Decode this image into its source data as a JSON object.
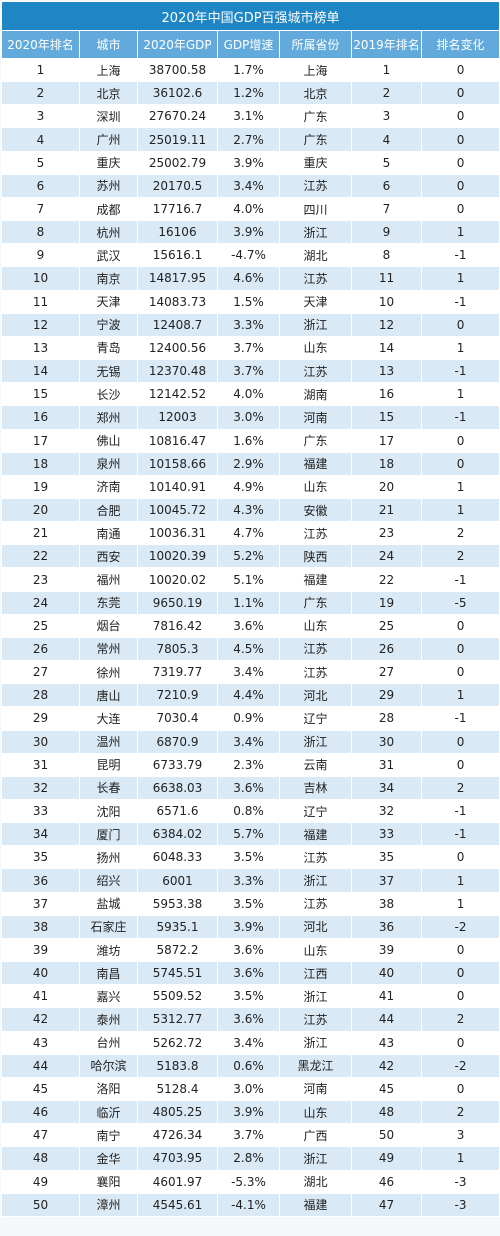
{
  "title": "2020年中国GDP百强城市榜单",
  "headers": [
    "2020年排名",
    "城市",
    "2020年GDP",
    "GDP增速",
    "所属省份",
    "2019年排名",
    "排名变化"
  ],
  "rows": [
    [
      "1",
      "上海",
      "38700.58",
      "1.7%",
      "上海",
      "1",
      "0"
    ],
    [
      "2",
      "北京",
      "36102.6",
      "1.2%",
      "北京",
      "2",
      "0"
    ],
    [
      "3",
      "深圳",
      "27670.24",
      "3.1%",
      "广东",
      "3",
      "0"
    ],
    [
      "4",
      "广州",
      "25019.11",
      "2.7%",
      "广东",
      "4",
      "0"
    ],
    [
      "5",
      "重庆",
      "25002.79",
      "3.9%",
      "重庆",
      "5",
      "0"
    ],
    [
      "6",
      "苏州",
      "20170.5",
      "3.4%",
      "江苏",
      "6",
      "0"
    ],
    [
      "7",
      "成都",
      "17716.7",
      "4.0%",
      "四川",
      "7",
      "0"
    ],
    [
      "8",
      "杭州",
      "16106",
      "3.9%",
      "浙江",
      "9",
      "1"
    ],
    [
      "9",
      "武汉",
      "15616.1",
      "-4.7%",
      "湖北",
      "8",
      "-1"
    ],
    [
      "10",
      "南京",
      "14817.95",
      "4.6%",
      "江苏",
      "11",
      "1"
    ],
    [
      "11",
      "天津",
      "14083.73",
      "1.5%",
      "天津",
      "10",
      "-1"
    ],
    [
      "12",
      "宁波",
      "12408.7",
      "3.3%",
      "浙江",
      "12",
      "0"
    ],
    [
      "13",
      "青岛",
      "12400.56",
      "3.7%",
      "山东",
      "14",
      "1"
    ],
    [
      "14",
      "无锡",
      "12370.48",
      "3.7%",
      "江苏",
      "13",
      "-1"
    ],
    [
      "15",
      "长沙",
      "12142.52",
      "4.0%",
      "湖南",
      "16",
      "1"
    ],
    [
      "16",
      "郑州",
      "12003",
      "3.0%",
      "河南",
      "15",
      "-1"
    ],
    [
      "17",
      "佛山",
      "10816.47",
      "1.6%",
      "广东",
      "17",
      "0"
    ],
    [
      "18",
      "泉州",
      "10158.66",
      "2.9%",
      "福建",
      "18",
      "0"
    ],
    [
      "19",
      "济南",
      "10140.91",
      "4.9%",
      "山东",
      "20",
      "1"
    ],
    [
      "20",
      "合肥",
      "10045.72",
      "4.3%",
      "安徽",
      "21",
      "1"
    ],
    [
      "21",
      "南通",
      "10036.31",
      "4.7%",
      "江苏",
      "23",
      "2"
    ],
    [
      "22",
      "西安",
      "10020.39",
      "5.2%",
      "陕西",
      "24",
      "2"
    ],
    [
      "23",
      "福州",
      "10020.02",
      "5.1%",
      "福建",
      "22",
      "-1"
    ],
    [
      "24",
      "东莞",
      "9650.19",
      "1.1%",
      "广东",
      "19",
      "-5"
    ],
    [
      "25",
      "烟台",
      "7816.42",
      "3.6%",
      "山东",
      "25",
      "0"
    ],
    [
      "26",
      "常州",
      "7805.3",
      "4.5%",
      "江苏",
      "26",
      "0"
    ],
    [
      "27",
      "徐州",
      "7319.77",
      "3.4%",
      "江苏",
      "27",
      "0"
    ],
    [
      "28",
      "唐山",
      "7210.9",
      "4.4%",
      "河北",
      "29",
      "1"
    ],
    [
      "29",
      "大连",
      "7030.4",
      "0.9%",
      "辽宁",
      "28",
      "-1"
    ],
    [
      "30",
      "温州",
      "6870.9",
      "3.4%",
      "浙江",
      "30",
      "0"
    ],
    [
      "31",
      "昆明",
      "6733.79",
      "2.3%",
      "云南",
      "31",
      "0"
    ],
    [
      "32",
      "长春",
      "6638.03",
      "3.6%",
      "吉林",
      "34",
      "2"
    ],
    [
      "33",
      "沈阳",
      "6571.6",
      "0.8%",
      "辽宁",
      "32",
      "-1"
    ],
    [
      "34",
      "厦门",
      "6384.02",
      "5.7%",
      "福建",
      "33",
      "-1"
    ],
    [
      "35",
      "扬州",
      "6048.33",
      "3.5%",
      "江苏",
      "35",
      "0"
    ],
    [
      "36",
      "绍兴",
      "6001",
      "3.3%",
      "浙江",
      "37",
      "1"
    ],
    [
      "37",
      "盐城",
      "5953.38",
      "3.5%",
      "江苏",
      "38",
      "1"
    ],
    [
      "38",
      "石家庄",
      "5935.1",
      "3.9%",
      "河北",
      "36",
      "-2"
    ],
    [
      "39",
      "潍坊",
      "5872.2",
      "3.6%",
      "山东",
      "39",
      "0"
    ],
    [
      "40",
      "南昌",
      "5745.51",
      "3.6%",
      "江西",
      "40",
      "0"
    ],
    [
      "41",
      "嘉兴",
      "5509.52",
      "3.5%",
      "浙江",
      "41",
      "0"
    ],
    [
      "42",
      "泰州",
      "5312.77",
      "3.6%",
      "江苏",
      "44",
      "2"
    ],
    [
      "43",
      "台州",
      "5262.72",
      "3.4%",
      "浙江",
      "43",
      "0"
    ],
    [
      "44",
      "哈尔滨",
      "5183.8",
      "0.6%",
      "黑龙江",
      "42",
      "-2"
    ],
    [
      "45",
      "洛阳",
      "5128.4",
      "3.0%",
      "河南",
      "45",
      "0"
    ],
    [
      "46",
      "临沂",
      "4805.25",
      "3.9%",
      "山东",
      "48",
      "2"
    ],
    [
      "47",
      "南宁",
      "4726.34",
      "3.7%",
      "广西",
      "50",
      "3"
    ],
    [
      "48",
      "金华",
      "4703.95",
      "2.8%",
      "浙江",
      "49",
      "1"
    ],
    [
      "49",
      "襄阳",
      "4601.97",
      "-5.3%",
      "湖北",
      "46",
      "-3"
    ],
    [
      "50",
      "漳州",
      "4545.61",
      "-4.1%",
      "福建",
      "47",
      "-3"
    ]
  ]
}
